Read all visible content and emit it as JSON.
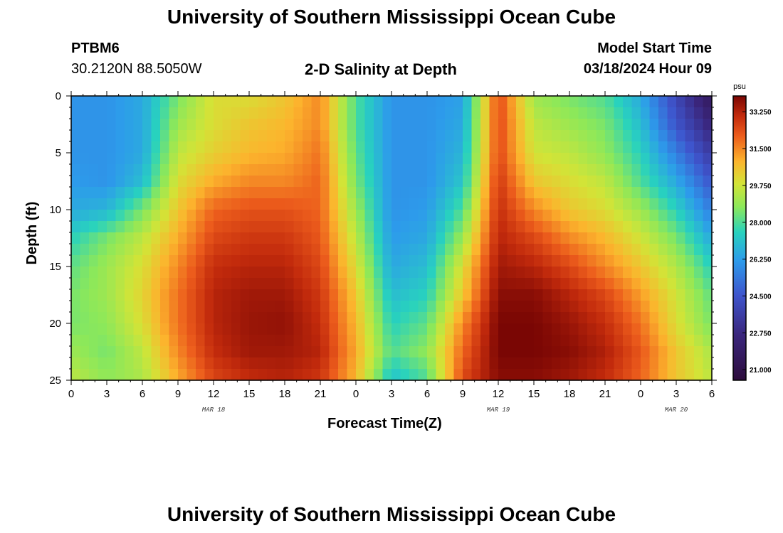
{
  "page": {
    "title": "University of Southern Mississippi Ocean Cube",
    "station": "PTBM6",
    "coordinates": "30.2120N  88.5050W",
    "subtitle": "2-D Salinity at Depth",
    "model_start_label": "Model Start Time",
    "model_start_value": "03/18/2024 Hour 09",
    "bottom_title": "University of Southern Mississippi Ocean Cube"
  },
  "chart_data": {
    "type": "heatmap",
    "title": "2-D Salinity at Depth",
    "xlabel": "Forecast Time(Z)",
    "ylabel": "Depth (ft)",
    "x_tick_labels": [
      "0",
      "3",
      "6",
      "9",
      "12",
      "15",
      "18",
      "21",
      "0",
      "3",
      "6",
      "9",
      "12",
      "15",
      "18",
      "21",
      "0",
      "3",
      "6"
    ],
    "x_range_hours": [
      0,
      54
    ],
    "date_labels": [
      {
        "hour": 12,
        "text": "MAR 18"
      },
      {
        "hour": 36,
        "text": "MAR 19"
      },
      {
        "hour": 51,
        "text": "MAR 20"
      }
    ],
    "y_ticks": [
      0,
      5,
      10,
      15,
      20,
      25
    ],
    "ylim": [
      0,
      25
    ],
    "y_inverted": true,
    "colorbar": {
      "unit": "psu",
      "ticks": [
        "33.250",
        "31.500",
        "29.750",
        "28.000",
        "26.250",
        "24.500",
        "22.750",
        "21.000"
      ],
      "range": [
        20.5,
        34.0
      ]
    },
    "depths_ft": [
      0,
      2.5,
      5,
      7.5,
      10,
      12.5,
      15,
      17.5,
      20,
      22.5,
      25
    ],
    "time_hours": [
      0,
      3,
      6,
      9,
      12,
      15,
      18,
      21,
      24,
      27,
      30,
      33,
      36,
      39,
      42,
      45,
      48,
      51,
      54
    ],
    "salinity_psu": [
      [
        26.0,
        26.0,
        26.5,
        28.5,
        30.0,
        30.0,
        30.5,
        31.5,
        28.0,
        26.0,
        26.0,
        26.3,
        32.5,
        29.0,
        28.5,
        28.0,
        26.5,
        24.0,
        21.5
      ],
      [
        26.0,
        26.0,
        26.5,
        29.0,
        30.0,
        30.5,
        30.8,
        31.5,
        28.0,
        26.0,
        26.0,
        26.5,
        32.5,
        29.5,
        29.0,
        28.5,
        27.0,
        24.5,
        22.5
      ],
      [
        26.0,
        26.0,
        26.5,
        29.5,
        30.3,
        30.8,
        31.0,
        31.8,
        28.2,
        26.0,
        26.0,
        26.8,
        32.5,
        29.8,
        29.5,
        28.8,
        27.5,
        25.5,
        23.5
      ],
      [
        26.2,
        26.0,
        27.0,
        30.0,
        31.0,
        31.5,
        31.5,
        32.0,
        28.5,
        26.0,
        26.0,
        27.2,
        32.8,
        30.5,
        30.0,
        29.5,
        28.0,
        26.5,
        24.5
      ],
      [
        26.5,
        26.8,
        28.5,
        30.5,
        32.0,
        32.3,
        32.3,
        32.0,
        29.0,
        26.0,
        26.2,
        28.0,
        33.0,
        31.5,
        30.5,
        30.0,
        29.0,
        27.5,
        25.5
      ],
      [
        27.5,
        28.5,
        29.5,
        31.0,
        32.5,
        32.8,
        32.8,
        32.2,
        29.5,
        26.2,
        26.5,
        29.0,
        33.2,
        32.5,
        31.5,
        30.8,
        29.8,
        28.5,
        26.5
      ],
      [
        28.2,
        29.0,
        30.0,
        31.5,
        33.0,
        33.2,
        33.2,
        32.5,
        30.0,
        26.5,
        27.0,
        30.0,
        33.5,
        33.2,
        32.5,
        31.5,
        30.5,
        29.3,
        27.5
      ],
      [
        28.5,
        29.0,
        30.2,
        31.8,
        33.2,
        33.5,
        33.5,
        32.8,
        30.5,
        27.0,
        27.5,
        30.5,
        33.8,
        33.8,
        33.2,
        32.5,
        31.2,
        29.8,
        28.2
      ],
      [
        28.5,
        28.8,
        30.0,
        31.8,
        33.2,
        33.6,
        33.7,
        33.0,
        30.8,
        27.5,
        28.2,
        31.5,
        34.0,
        34.0,
        33.6,
        33.0,
        31.8,
        30.0,
        28.5
      ],
      [
        29.0,
        28.5,
        29.5,
        31.5,
        33.0,
        33.5,
        33.5,
        33.2,
        31.0,
        28.0,
        28.8,
        32.0,
        34.0,
        34.0,
        33.8,
        33.3,
        32.2,
        30.5,
        29.2
      ],
      [
        29.5,
        28.8,
        29.2,
        31.0,
        32.5,
        33.0,
        33.2,
        32.8,
        30.8,
        27.0,
        28.0,
        32.5,
        33.8,
        33.8,
        33.5,
        33.0,
        32.0,
        30.5,
        29.5
      ]
    ]
  }
}
